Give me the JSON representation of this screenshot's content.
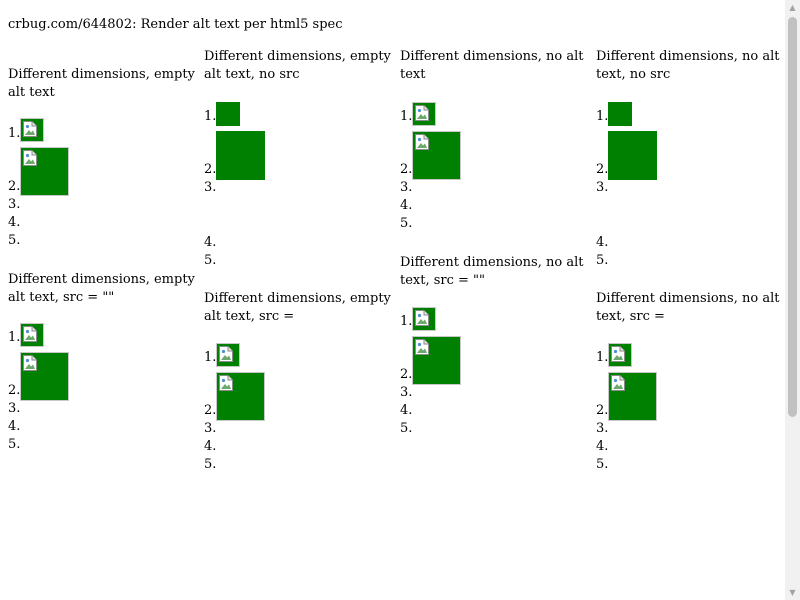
{
  "page": {
    "title": "crbug.com/644802: Render alt text per html5 spec"
  },
  "sections": [
    {
      "title": "Different dimensions, empty alt text",
      "items": [
        "1.",
        "2.",
        "3.",
        "4.",
        "5."
      ],
      "broken_icon": true,
      "image_border": true
    },
    {
      "title": "Different dimensions, empty alt text, no src",
      "items": [
        "1.",
        "2.",
        "3.",
        "4.",
        "5."
      ],
      "broken_icon": false,
      "image_border": false
    },
    {
      "title": "Different dimensions, no alt text",
      "items": [
        "1.",
        "2.",
        "3.",
        "4.",
        "5."
      ],
      "broken_icon": true,
      "image_border": true
    },
    {
      "title": "Different dimensions, no alt text, no src",
      "items": [
        "1.",
        "2.",
        "3.",
        "4.",
        "5."
      ],
      "broken_icon": false,
      "image_border": false
    },
    {
      "title": "Different dimensions, empty alt text, src = \"\"",
      "items": [
        "1.",
        "2.",
        "3.",
        "4.",
        "5."
      ],
      "broken_icon": true,
      "image_border": true
    },
    {
      "title": "Different dimensions, empty alt text, src =",
      "items": [
        "1.",
        "2.",
        "3.",
        "4.",
        "5."
      ],
      "broken_icon": true,
      "image_border": true
    },
    {
      "title": "Different dimensions, no alt text, src = \"\"",
      "items": [
        "1.",
        "2.",
        "3.",
        "4.",
        "5."
      ],
      "broken_icon": true,
      "image_border": true
    },
    {
      "title": "Different dimensions, no alt text, src =",
      "items": [
        "1.",
        "2.",
        "3.",
        "4.",
        "5."
      ],
      "broken_icon": true,
      "image_border": true
    }
  ],
  "colors": {
    "image_fill": "#008000",
    "background": "#ffffff",
    "scrollbar_track": "#f1f1f1",
    "scrollbar_thumb": "#c1c1c1"
  },
  "icons": {
    "broken_image": "broken-image-icon",
    "scroll_up": "scroll-up-arrow-icon",
    "scroll_down": "scroll-down-arrow-icon"
  }
}
